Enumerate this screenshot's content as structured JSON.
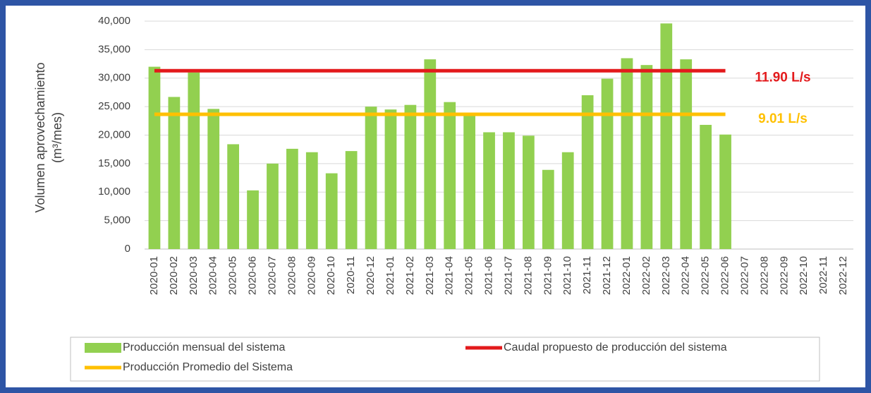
{
  "chart_data": {
    "type": "bar",
    "y_label": [
      "Volumen aprovechamiento",
      "(m³/mes)"
    ],
    "categories": [
      "2020-01",
      "2020-02",
      "2020-03",
      "2020-04",
      "2020-05",
      "2020-06",
      "2020-07",
      "2020-08",
      "2020-09",
      "2020-10",
      "2020-11",
      "2020-12",
      "2021-01",
      "2021-02",
      "2021-03",
      "2021-04",
      "2021-05",
      "2021-06",
      "2021-07",
      "2021-08",
      "2021-09",
      "2021-10",
      "2021-11",
      "2021-12",
      "2022-01",
      "2022-02",
      "2022-03",
      "2022-04",
      "2022-05",
      "2022-06",
      "2022-07",
      "2022-08",
      "2022-09",
      "2022-10",
      "2022-11",
      "2022-12"
    ],
    "series": [
      {
        "name": "Producción mensual del sistema",
        "type": "bar",
        "color": "#92d050",
        "values": [
          32000,
          26700,
          31000,
          24600,
          18400,
          10300,
          15000,
          17600,
          17000,
          13300,
          17200,
          25000,
          24500,
          25300,
          33300,
          25800,
          23500,
          20500,
          20500,
          19900,
          13900,
          17000,
          27000,
          29900,
          33500,
          32300,
          39600,
          33300,
          21800,
          20100,
          null,
          null,
          null,
          null,
          null,
          null
        ]
      },
      {
        "name": "Caudal propuesto de producción del sistema",
        "type": "line",
        "color": "#e31a1c",
        "values": [
          31300,
          31300,
          31300,
          31300,
          31300,
          31300,
          31300,
          31300,
          31300,
          31300,
          31300,
          31300,
          31300,
          31300,
          31300,
          31300,
          31300,
          31300,
          31300,
          31300,
          31300,
          31300,
          31300,
          31300,
          31300,
          31300,
          31300,
          31300,
          31300,
          31300,
          null,
          null,
          null,
          null,
          null,
          null
        ]
      },
      {
        "name": "Producción Promedio del Sistema",
        "type": "line",
        "color": "#ffc000",
        "values": [
          23650,
          23650,
          23650,
          23650,
          23650,
          23650,
          23650,
          23650,
          23650,
          23650,
          23650,
          23650,
          23650,
          23650,
          23650,
          23650,
          23650,
          23650,
          23650,
          23650,
          23650,
          23650,
          23650,
          23650,
          23650,
          23650,
          23650,
          23650,
          23650,
          23650,
          null,
          null,
          null,
          null,
          null,
          null
        ]
      }
    ],
    "annotations": [
      {
        "text": "11.90 L/s",
        "color": "#e31a1c"
      },
      {
        "text": "9.01 L/s",
        "color": "#ffc000"
      }
    ],
    "ylim": [
      0,
      40000
    ],
    "yticks": [
      0,
      {
        "value": 5000,
        "label": "5,000"
      },
      {
        "value": 10000,
        "label": "10,000"
      },
      {
        "value": 15000,
        "label": "15,000"
      },
      {
        "value": 20000,
        "label": "20,000"
      },
      {
        "value": 25000,
        "label": "25,000"
      },
      {
        "value": 30000,
        "label": "30,000"
      },
      {
        "value": 35000,
        "label": "35,000"
      },
      {
        "value": 40000,
        "label": "40,000"
      }
    ],
    "grid": true,
    "legend": "bottom"
  }
}
